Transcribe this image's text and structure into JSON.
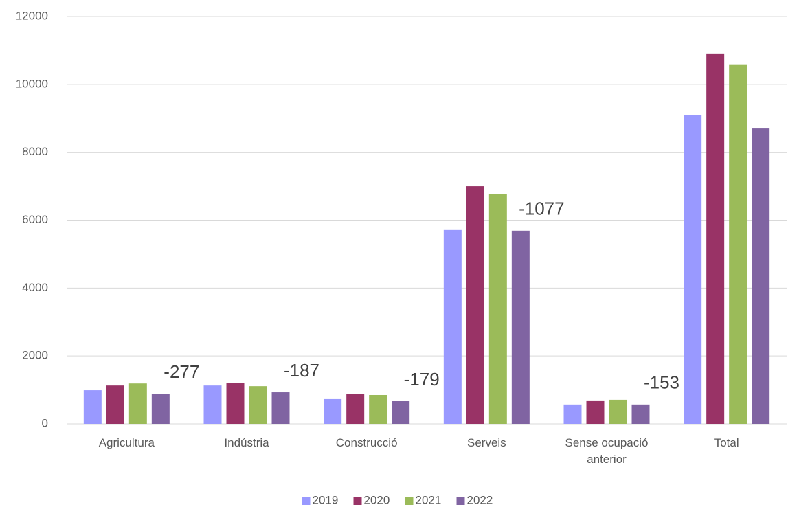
{
  "chart_data": {
    "type": "bar",
    "categories": [
      "Agricultura",
      "Indústria",
      "Construcció",
      "Serveis",
      "Sense ocupació anterior",
      "Total"
    ],
    "series": [
      {
        "name": "2019",
        "color": "#9999ff",
        "values": [
          990,
          1130,
          730,
          5710,
          570,
          9090
        ]
      },
      {
        "name": "2020",
        "color": "#993366",
        "values": [
          1130,
          1210,
          890,
          7000,
          690,
          10910
        ]
      },
      {
        "name": "2021",
        "color": "#9bbb59",
        "values": [
          1190,
          1110,
          850,
          6760,
          710,
          10590
        ]
      },
      {
        "name": "2022",
        "color": "#8064a2",
        "values": [
          890,
          930,
          670,
          5690,
          570,
          8700
        ]
      }
    ],
    "annotations": [
      "-277",
      "-187",
      "-179",
      "-1077",
      "-153"
    ],
    "ylim": [
      0,
      12000
    ],
    "yticks": [
      0,
      2000,
      4000,
      6000,
      8000,
      10000,
      12000
    ],
    "grid": true,
    "legend": "bottom"
  }
}
